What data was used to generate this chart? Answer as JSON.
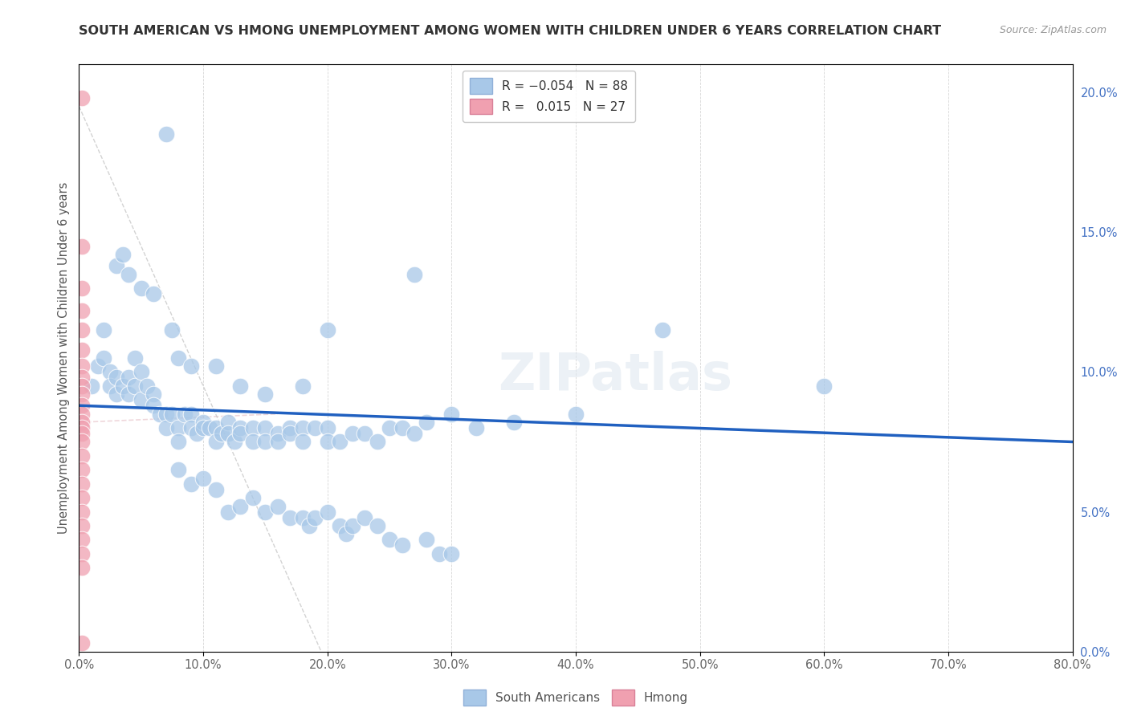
{
  "title": "SOUTH AMERICAN VS HMONG UNEMPLOYMENT AMONG WOMEN WITH CHILDREN UNDER 6 YEARS CORRELATION CHART",
  "source": "Source: ZipAtlas.com",
  "ylabel": "Unemployment Among Women with Children Under 6 years",
  "xlim": [
    0,
    80
  ],
  "ylim": [
    0,
    21
  ],
  "south_american_color": "#a8c8e8",
  "hmong_color": "#f0a0b0",
  "trend_color_sa": "#2060c0",
  "watermark": "ZIPatlas",
  "south_americans": [
    [
      1.0,
      9.5
    ],
    [
      1.5,
      10.2
    ],
    [
      2.0,
      10.5
    ],
    [
      2.5,
      10.0
    ],
    [
      2.5,
      9.5
    ],
    [
      3.0,
      9.8
    ],
    [
      3.0,
      9.2
    ],
    [
      3.5,
      9.5
    ],
    [
      4.0,
      9.8
    ],
    [
      4.0,
      9.2
    ],
    [
      4.5,
      9.5
    ],
    [
      4.5,
      10.5
    ],
    [
      5.0,
      9.0
    ],
    [
      5.0,
      10.0
    ],
    [
      5.5,
      9.5
    ],
    [
      6.0,
      9.2
    ],
    [
      6.0,
      8.8
    ],
    [
      6.5,
      8.5
    ],
    [
      7.0,
      8.5
    ],
    [
      7.0,
      8.0
    ],
    [
      7.5,
      8.5
    ],
    [
      8.0,
      8.0
    ],
    [
      8.0,
      7.5
    ],
    [
      8.5,
      8.5
    ],
    [
      9.0,
      8.5
    ],
    [
      9.0,
      8.0
    ],
    [
      9.5,
      7.8
    ],
    [
      10.0,
      8.2
    ],
    [
      10.0,
      8.0
    ],
    [
      10.5,
      8.0
    ],
    [
      11.0,
      8.0
    ],
    [
      11.0,
      7.5
    ],
    [
      11.5,
      7.8
    ],
    [
      12.0,
      8.2
    ],
    [
      12.0,
      7.8
    ],
    [
      12.5,
      7.5
    ],
    [
      13.0,
      8.0
    ],
    [
      13.0,
      7.8
    ],
    [
      14.0,
      8.0
    ],
    [
      14.0,
      7.5
    ],
    [
      15.0,
      8.0
    ],
    [
      15.0,
      7.5
    ],
    [
      16.0,
      7.8
    ],
    [
      16.0,
      7.5
    ],
    [
      17.0,
      8.0
    ],
    [
      17.0,
      7.8
    ],
    [
      18.0,
      8.0
    ],
    [
      18.0,
      7.5
    ],
    [
      19.0,
      8.0
    ],
    [
      20.0,
      8.0
    ],
    [
      20.0,
      7.5
    ],
    [
      21.0,
      7.5
    ],
    [
      22.0,
      7.8
    ],
    [
      23.0,
      7.8
    ],
    [
      24.0,
      7.5
    ],
    [
      25.0,
      8.0
    ],
    [
      26.0,
      8.0
    ],
    [
      27.0,
      7.8
    ],
    [
      28.0,
      8.2
    ],
    [
      30.0,
      8.5
    ],
    [
      32.0,
      8.0
    ],
    [
      35.0,
      8.2
    ],
    [
      2.0,
      11.5
    ],
    [
      3.0,
      13.8
    ],
    [
      3.5,
      14.2
    ],
    [
      4.0,
      13.5
    ],
    [
      5.0,
      13.0
    ],
    [
      6.0,
      12.8
    ],
    [
      7.5,
      11.5
    ],
    [
      8.0,
      10.5
    ],
    [
      9.0,
      10.2
    ],
    [
      11.0,
      10.2
    ],
    [
      13.0,
      9.5
    ],
    [
      15.0,
      9.2
    ],
    [
      18.0,
      9.5
    ],
    [
      20.0,
      11.5
    ],
    [
      27.0,
      13.5
    ],
    [
      7.0,
      18.5
    ],
    [
      8.0,
      6.5
    ],
    [
      9.0,
      6.0
    ],
    [
      10.0,
      6.2
    ],
    [
      11.0,
      5.8
    ],
    [
      12.0,
      5.0
    ],
    [
      13.0,
      5.2
    ],
    [
      14.0,
      5.5
    ],
    [
      15.0,
      5.0
    ],
    [
      16.0,
      5.2
    ],
    [
      17.0,
      4.8
    ],
    [
      18.0,
      4.8
    ],
    [
      18.5,
      4.5
    ],
    [
      19.0,
      4.8
    ],
    [
      20.0,
      5.0
    ],
    [
      21.0,
      4.5
    ],
    [
      21.5,
      4.2
    ],
    [
      22.0,
      4.5
    ],
    [
      23.0,
      4.8
    ],
    [
      24.0,
      4.5
    ],
    [
      25.0,
      4.0
    ],
    [
      26.0,
      3.8
    ],
    [
      28.0,
      4.0
    ],
    [
      29.0,
      3.5
    ],
    [
      30.0,
      3.5
    ],
    [
      40.0,
      8.5
    ],
    [
      47.0,
      11.5
    ],
    [
      60.0,
      9.5
    ]
  ],
  "hmong": [
    [
      0.2,
      19.8
    ],
    [
      0.2,
      14.5
    ],
    [
      0.2,
      13.0
    ],
    [
      0.2,
      12.2
    ],
    [
      0.2,
      11.5
    ],
    [
      0.2,
      10.8
    ],
    [
      0.2,
      10.2
    ],
    [
      0.2,
      9.8
    ],
    [
      0.2,
      9.5
    ],
    [
      0.2,
      9.2
    ],
    [
      0.2,
      8.8
    ],
    [
      0.2,
      8.5
    ],
    [
      0.2,
      8.2
    ],
    [
      0.2,
      8.0
    ],
    [
      0.2,
      7.8
    ],
    [
      0.2,
      7.5
    ],
    [
      0.2,
      7.0
    ],
    [
      0.2,
      6.5
    ],
    [
      0.2,
      6.0
    ],
    [
      0.2,
      5.5
    ],
    [
      0.2,
      5.0
    ],
    [
      0.2,
      4.5
    ],
    [
      0.2,
      4.0
    ],
    [
      0.2,
      3.5
    ],
    [
      0.2,
      3.0
    ],
    [
      0.2,
      0.3
    ]
  ],
  "sa_trend": [
    0,
    80,
    8.8,
    7.5
  ],
  "hmong_trend": [
    0,
    16,
    8.2,
    8.5
  ],
  "diag_line": [
    0,
    19.5,
    19.5,
    0
  ],
  "background_color": "#ffffff",
  "grid_color": "#cccccc"
}
